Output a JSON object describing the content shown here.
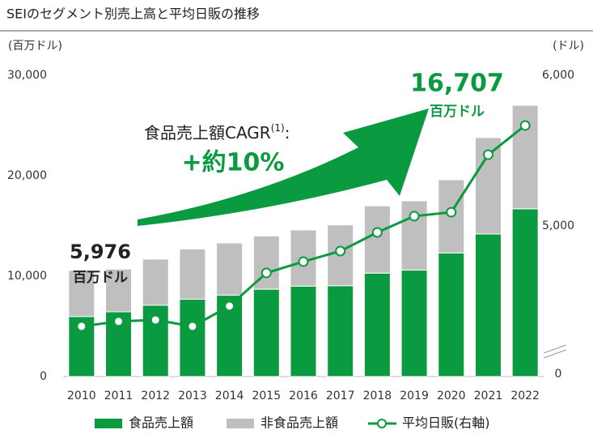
{
  "chart_data": {
    "type": "bar",
    "title": "SEIのセグメント別売上高と平均日販の推移",
    "y_axis_label": "(百万ドル)",
    "y2_axis_label": "(ドル)",
    "categories": [
      "2010",
      "2011",
      "2012",
      "2013",
      "2014",
      "2015",
      "2016",
      "2017",
      "2018",
      "2019",
      "2020",
      "2021",
      "2022"
    ],
    "stacked": true,
    "series": [
      {
        "name": "食品売上額",
        "color": "#0a9a40",
        "values": [
          5976,
          6450,
          7100,
          7700,
          8100,
          8700,
          9000,
          9050,
          10300,
          10600,
          12300,
          14200,
          16707
        ]
      },
      {
        "name": "非食品売上額",
        "color": "#bfbfbf",
        "values": [
          4600,
          4250,
          4600,
          5000,
          5200,
          5300,
          5600,
          6050,
          6700,
          6900,
          7300,
          9600,
          10300
        ]
      },
      {
        "name": "平均日販(右軸)",
        "type": "line",
        "axis": "y2",
        "color": "#0a9a40",
        "values": [
          4333,
          4366,
          4376,
          4333,
          4468,
          4688,
          4763,
          4833,
          4957,
          5065,
          5091,
          5473,
          5667
        ]
      }
    ],
    "ylim": [
      0,
      30000
    ],
    "yticks": [
      0,
      {
        "value": 10000,
        "label": "10,000"
      },
      {
        "value": 20000,
        "label": "20,000"
      },
      {
        "value": 30000,
        "label": "30,000"
      }
    ],
    "y2lim": [
      4000,
      6000
    ],
    "y2ticks": [
      {
        "value": 5000,
        "label": "5,000"
      },
      {
        "value": 6000,
        "label": "6,000"
      }
    ],
    "y2_break_label": "0",
    "annotations": {
      "start_value": "5,976",
      "start_unit": "百万ドル",
      "end_value": "16,707",
      "end_unit": "百万ドル",
      "cagr_label": "食品売上額CAGR",
      "cagr_note": "(1)",
      "cagr_colon": ":",
      "cagr_value": "+約10%"
    },
    "legend": "bottom"
  }
}
